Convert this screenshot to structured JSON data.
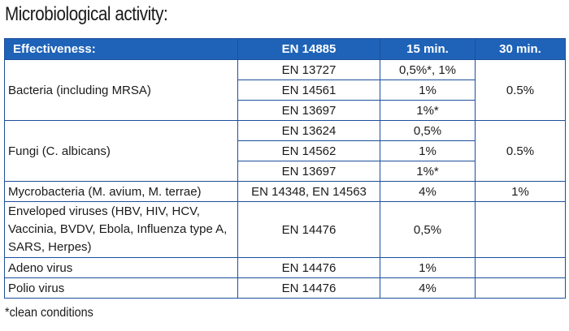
{
  "title": "Microbiological activity:",
  "header": {
    "col1": "Effectiveness:",
    "col2": "EN 14885",
    "col3": "15 min.",
    "col4": "30 min."
  },
  "rows": [
    {
      "label": "Bacteria (including MRSA)",
      "sub": [
        {
          "standard": "EN 13727",
          "min15": "0,5%*, 1%",
          "min30": ""
        },
        {
          "standard": "EN 14561",
          "min15": "1%",
          "min30": "0.5%"
        },
        {
          "standard": "EN 13697",
          "min15": "1%*",
          "min30": ""
        }
      ]
    },
    {
      "label": "Fungi (C. albicans)",
      "sub": [
        {
          "standard": "EN 13624",
          "min15": "0,5%",
          "min30": ""
        },
        {
          "standard": "EN 14562",
          "min15": "1%",
          "min30": "0.5%"
        },
        {
          "standard": "EN 13697",
          "min15": "1%*",
          "min30": ""
        }
      ]
    },
    {
      "label": "Mycrobacteria (M. avium, M. terrae)",
      "sub": [
        {
          "standard": "EN 14348, EN 14563",
          "min15": "4%",
          "min30": "1%"
        }
      ]
    },
    {
      "label": "Enveloped viruses (HBV, HIV, HCV, Vaccinia, BVDV, Ebola, Influenza type A, SARS, Herpes)",
      "sub": [
        {
          "standard": "EN 14476",
          "min15": "0,5%",
          "min30": ""
        }
      ]
    },
    {
      "label": "Adeno virus",
      "sub": [
        {
          "standard": "EN 14476",
          "min15": "1%",
          "min30": ""
        }
      ]
    },
    {
      "label": "Polio virus",
      "sub": [
        {
          "standard": "EN 14476",
          "min15": "4%",
          "min30": ""
        }
      ]
    }
  ],
  "footnote": "*clean conditions"
}
